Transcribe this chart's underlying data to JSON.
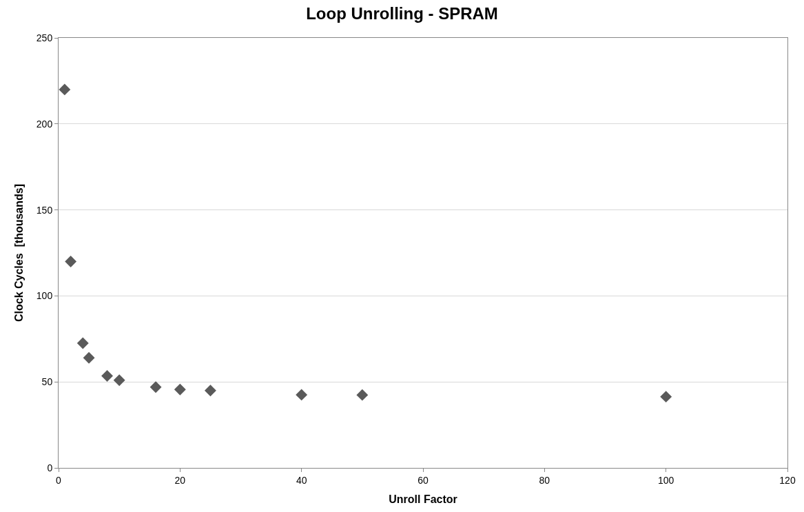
{
  "chart_data": {
    "type": "scatter",
    "title": "Loop Unrolling - SPRAM",
    "xlabel": "Unroll Factor",
    "ylabel": "Clock Cycles  [thousands]",
    "x": [
      1,
      2,
      4,
      5,
      8,
      10,
      16,
      20,
      25,
      40,
      50,
      100
    ],
    "series": [
      {
        "color": "#5a5a5a",
        "values": [
          220,
          120,
          72.5,
          64,
          53.5,
          51,
          47,
          45.6,
          45,
          42.5,
          42.4,
          41.4
        ]
      }
    ],
    "xlim": [
      0,
      120
    ],
    "xticks": [
      0,
      20,
      40,
      60,
      80,
      100,
      120
    ],
    "ylim": [
      0,
      250
    ],
    "yticks": [
      0,
      50,
      100,
      150,
      200,
      250
    ],
    "grid": "y",
    "marker": "diamond"
  }
}
